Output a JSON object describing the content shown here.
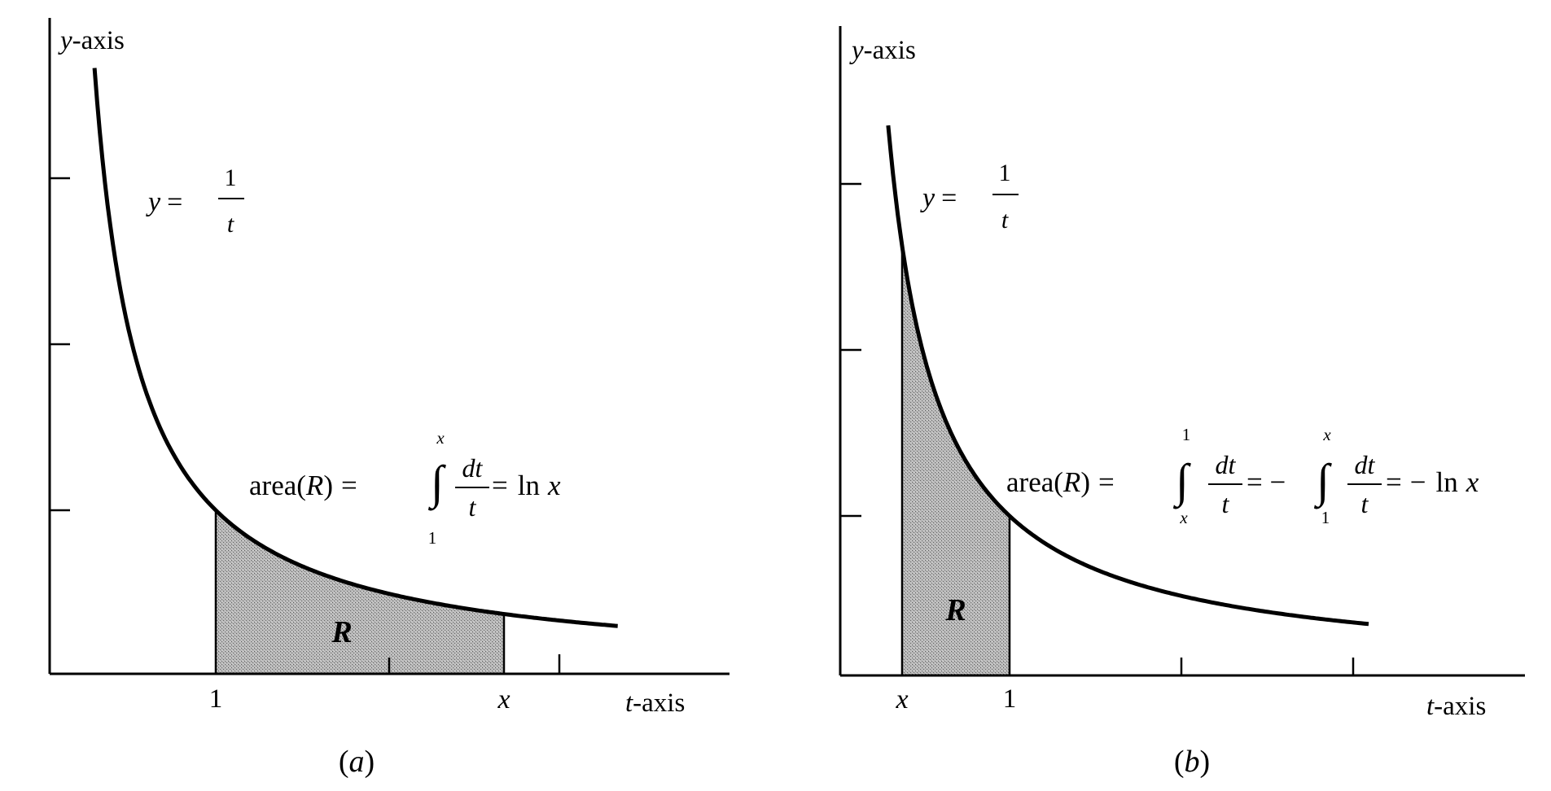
{
  "panels": [
    {
      "id": "a",
      "caption": "(a)",
      "y_axis_label": "y-axis",
      "t_axis_label": "t-axis",
      "tick_one": "1",
      "tick_x": "x",
      "curve_label": {
        "lhs": "y =",
        "num": "1",
        "den": "t"
      },
      "region_label": "R",
      "area_formula": {
        "prefix": "area(R) =",
        "integral_upper": "x",
        "integral_lower": "1",
        "integrand_num": "dt",
        "integrand_den": "t",
        "result": "= ln x"
      }
    },
    {
      "id": "b",
      "caption": "(b)",
      "y_axis_label": "y-axis",
      "t_axis_label": "t-axis",
      "tick_one": "1",
      "tick_x": "x",
      "curve_label": {
        "lhs": "y =",
        "num": "1",
        "den": "t"
      },
      "region_label": "R",
      "area_formula": {
        "prefix": "area(R) =",
        "integral1_upper": "1",
        "integral1_lower": "x",
        "integrand1_num": "dt",
        "integrand1_den": "t",
        "middle": "= −",
        "integral2_upper": "x",
        "integral2_lower": "1",
        "integrand2_num": "dt",
        "integrand2_den": "t",
        "result": "= − ln x"
      }
    }
  ],
  "colors": {
    "ink": "#000000",
    "shade": "#9a9a9a"
  }
}
